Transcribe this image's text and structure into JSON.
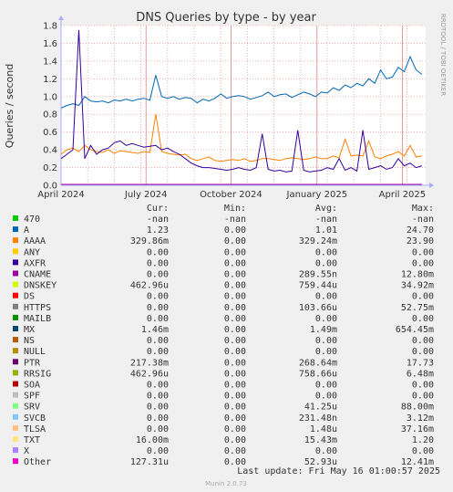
{
  "chart_data": {
    "type": "line",
    "title": "DNS Queries by type - by year",
    "ylabel": "Queries / second",
    "vertical_text": "RRDTOOL / TOBI OETIKER",
    "ylim": [
      0,
      1.8
    ],
    "yticks": [
      "0.0",
      "0.2",
      "0.4",
      "0.6",
      "0.8",
      "1.0",
      "1.2",
      "1.4",
      "1.6",
      "1.8"
    ],
    "xticks": [
      "April 2024",
      "July 2024",
      "October 2024",
      "January 2025",
      "April 2025"
    ],
    "grid": true,
    "series": [
      {
        "name": "A",
        "color": "#0066b3",
        "values": [
          0.87,
          0.9,
          0.92,
          0.9,
          1.0,
          0.95,
          0.94,
          0.95,
          0.93,
          0.96,
          0.95,
          0.97,
          0.95,
          0.97,
          0.98,
          0.96,
          1.24,
          1.0,
          0.98,
          1.0,
          0.97,
          0.99,
          0.98,
          0.93,
          0.97,
          0.95,
          0.98,
          1.03,
          0.98,
          1.0,
          1.01,
          1.0,
          0.97,
          0.99,
          1.01,
          1.05,
          1.0,
          1.02,
          1.03,
          0.99,
          1.02,
          1.05,
          1.03,
          1.0,
          1.05,
          1.04,
          1.1,
          1.07,
          1.13,
          1.1,
          1.15,
          1.12,
          1.2,
          1.15,
          1.3,
          1.2,
          1.22,
          1.33,
          1.28,
          1.45,
          1.3,
          1.25
        ]
      },
      {
        "name": "AAAA",
        "color": "#ff8000",
        "values": [
          0.35,
          0.4,
          0.42,
          0.38,
          0.45,
          0.4,
          0.38,
          0.37,
          0.4,
          0.36,
          0.39,
          0.38,
          0.37,
          0.36,
          0.38,
          0.37,
          0.8,
          0.38,
          0.36,
          0.35,
          0.34,
          0.35,
          0.3,
          0.28,
          0.3,
          0.32,
          0.28,
          0.27,
          0.28,
          0.29,
          0.28,
          0.3,
          0.27,
          0.28,
          0.3,
          0.3,
          0.29,
          0.28,
          0.3,
          0.31,
          0.3,
          0.29,
          0.3,
          0.32,
          0.3,
          0.3,
          0.33,
          0.31,
          0.52,
          0.33,
          0.34,
          0.33,
          0.5,
          0.32,
          0.3,
          0.33,
          0.35,
          0.38,
          0.33,
          0.45,
          0.32,
          0.33
        ]
      },
      {
        "name": "PTR",
        "color": "#330099",
        "values": [
          0.3,
          0.35,
          0.4,
          1.75,
          0.3,
          0.45,
          0.35,
          0.4,
          0.42,
          0.48,
          0.5,
          0.45,
          0.47,
          0.45,
          0.43,
          0.44,
          0.45,
          0.4,
          0.42,
          0.38,
          0.35,
          0.3,
          0.25,
          0.22,
          0.2,
          0.2,
          0.19,
          0.18,
          0.17,
          0.18,
          0.2,
          0.18,
          0.17,
          0.2,
          0.58,
          0.18,
          0.16,
          0.17,
          0.15,
          0.16,
          0.62,
          0.17,
          0.15,
          0.16,
          0.17,
          0.2,
          0.18,
          0.3,
          0.17,
          0.2,
          0.16,
          0.62,
          0.18,
          0.2,
          0.22,
          0.18,
          0.2,
          0.3,
          0.22,
          0.25,
          0.2,
          0.22
        ]
      },
      {
        "name": "CNAME",
        "color": "#990099",
        "values": [
          0.01,
          0.01,
          0.01,
          0.01,
          0.01,
          0.01,
          0.01,
          0.01,
          0.01,
          0.01,
          0.01,
          0.01,
          0.01,
          0.01,
          0.01,
          0.01,
          0.01,
          0.01,
          0.01,
          0.01,
          0.01,
          0.01,
          0.01,
          0.01,
          0.01,
          0.01,
          0.01,
          0.01,
          0.01,
          0.01,
          0.01,
          0.01,
          0.01,
          0.01,
          0.01,
          0.01,
          0.01,
          0.01,
          0.01,
          0.01,
          0.01,
          0.01,
          0.01,
          0.01,
          0.01,
          0.01,
          0.01,
          0.01,
          0.01,
          0.01,
          0.01,
          0.01,
          0.01,
          0.01,
          0.01,
          0.01,
          0.01,
          0.01,
          0.01,
          0.01,
          0.01,
          0.01
        ]
      }
    ],
    "legend": {
      "headers": [
        "Cur:",
        "Min:",
        "Avg:",
        "Max:"
      ],
      "rows": [
        {
          "name": "470",
          "color": "#00cc00",
          "cur": "-nan",
          "min": "-nan",
          "avg": "-nan",
          "max": "-nan"
        },
        {
          "name": "A",
          "color": "#0066b3",
          "cur": "1.23",
          "min": "0.00",
          "avg": "1.01",
          "max": "24.70"
        },
        {
          "name": "AAAA",
          "color": "#ff8000",
          "cur": "329.86m",
          "min": "0.00",
          "avg": "329.24m",
          "max": "23.90"
        },
        {
          "name": "ANY",
          "color": "#ffcc00",
          "cur": "0.00",
          "min": "0.00",
          "avg": "0.00",
          "max": "0.00"
        },
        {
          "name": "AXFR",
          "color": "#330099",
          "cur": "0.00",
          "min": "0.00",
          "avg": "0.00",
          "max": "0.00"
        },
        {
          "name": "CNAME",
          "color": "#990099",
          "cur": "0.00",
          "min": "0.00",
          "avg": "289.55n",
          "max": "12.80m"
        },
        {
          "name": "DNSKEY",
          "color": "#ccff00",
          "cur": "462.96u",
          "min": "0.00",
          "avg": "759.44u",
          "max": "34.92m"
        },
        {
          "name": "DS",
          "color": "#ff0000",
          "cur": "0.00",
          "min": "0.00",
          "avg": "0.00",
          "max": "0.00"
        },
        {
          "name": "HTTPS",
          "color": "#808080",
          "cur": "0.00",
          "min": "0.00",
          "avg": "103.66u",
          "max": "52.75m"
        },
        {
          "name": "MAILB",
          "color": "#008f00",
          "cur": "0.00",
          "min": "0.00",
          "avg": "0.00",
          "max": "0.00"
        },
        {
          "name": "MX",
          "color": "#00487d",
          "cur": "1.46m",
          "min": "0.00",
          "avg": "1.49m",
          "max": "654.45m"
        },
        {
          "name": "NS",
          "color": "#b35a00",
          "cur": "0.00",
          "min": "0.00",
          "avg": "0.00",
          "max": "0.00"
        },
        {
          "name": "NULL",
          "color": "#b38f00",
          "cur": "0.00",
          "min": "0.00",
          "avg": "0.00",
          "max": "0.00"
        },
        {
          "name": "PTR",
          "color": "#6b006b",
          "cur": "217.38m",
          "min": "0.00",
          "avg": "268.64m",
          "max": "17.73"
        },
        {
          "name": "RRSIG",
          "color": "#8fb300",
          "cur": "462.96u",
          "min": "0.00",
          "avg": "758.66u",
          "max": "6.48m"
        },
        {
          "name": "SOA",
          "color": "#b30000",
          "cur": "0.00",
          "min": "0.00",
          "avg": "0.00",
          "max": "0.00"
        },
        {
          "name": "SPF",
          "color": "#bebebe",
          "cur": "0.00",
          "min": "0.00",
          "avg": "0.00",
          "max": "0.00"
        },
        {
          "name": "SRV",
          "color": "#80ff80",
          "cur": "0.00",
          "min": "0.00",
          "avg": "41.25u",
          "max": "88.00m"
        },
        {
          "name": "SVCB",
          "color": "#80c9ff",
          "cur": "0.00",
          "min": "0.00",
          "avg": "231.48n",
          "max": "3.12m"
        },
        {
          "name": "TLSA",
          "color": "#ffc080",
          "cur": "0.00",
          "min": "0.00",
          "avg": "1.48u",
          "max": "37.16m"
        },
        {
          "name": "TXT",
          "color": "#ffe680",
          "cur": "16.00m",
          "min": "0.00",
          "avg": "15.43m",
          "max": "1.20"
        },
        {
          "name": "X",
          "color": "#aa80ff",
          "cur": "0.00",
          "min": "0.00",
          "avg": "0.00",
          "max": "0.00"
        },
        {
          "name": "Other",
          "color": "#ee00cc",
          "cur": "127.31u",
          "min": "0.00",
          "avg": "52.93u",
          "max": "12.41m"
        }
      ]
    },
    "last_update": "Last update: Fri May 16 01:00:57 2025",
    "footer": "Munin 2.0.73"
  }
}
